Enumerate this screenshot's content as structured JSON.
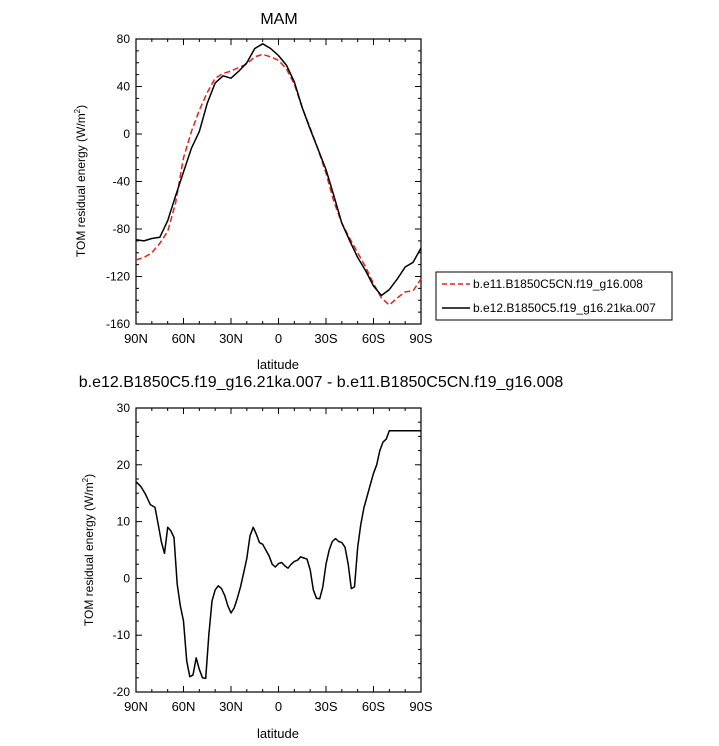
{
  "chart_data": [
    {
      "type": "line",
      "title": "MAM",
      "xlabel": "latitude",
      "ylabel": "TOM residual energy (W/m",
      "ylabel_sup": "2",
      "ylabel_close": ")",
      "xlim": [
        90,
        -90
      ],
      "ylim": [
        -160,
        80
      ],
      "yticks": [
        80,
        40,
        0,
        -40,
        -80,
        -120,
        -160
      ],
      "xticks": [
        90,
        60,
        30,
        0,
        -30,
        -60,
        -90
      ],
      "xtick_labels": [
        "90N",
        "60N",
        "30N",
        "0",
        "30S",
        "60S",
        "90S"
      ],
      "legend_position": "right",
      "x": [
        90,
        85,
        80,
        75,
        70,
        65,
        60,
        55,
        50,
        45,
        40,
        35,
        30,
        25,
        20,
        15,
        10,
        5,
        0,
        -5,
        -10,
        -15,
        -20,
        -25,
        -30,
        -35,
        -40,
        -45,
        -50,
        -55,
        -60,
        -65,
        -70,
        -75,
        -80,
        -85,
        -90
      ],
      "series": [
        {
          "name": "b.e11.B1850C5CN.f19_g16.008",
          "color": "#e8201a",
          "dash": "dashed",
          "values": [
            -106,
            -104,
            -100,
            -92,
            -82,
            -58,
            -20,
            2,
            20,
            35,
            47,
            51,
            53,
            56,
            59,
            65,
            67,
            65,
            62,
            55,
            42,
            22,
            5,
            -13,
            -33,
            -57,
            -75,
            -88,
            -100,
            -112,
            -126,
            -138,
            -144,
            -138,
            -133,
            -132,
            -122
          ]
        },
        {
          "name": "b.e12.B1850C5.f19_g16.21ka.007",
          "color": "#000000",
          "dash": "solid",
          "values": [
            -89,
            -90,
            -88,
            -87,
            -73,
            -52,
            -32,
            -12,
            2,
            26,
            43,
            49,
            47,
            53,
            60,
            72,
            76,
            72,
            66,
            58,
            44,
            22,
            4,
            -13,
            -30,
            -52,
            -75,
            -90,
            -104,
            -115,
            -128,
            -136,
            -131,
            -122,
            -112,
            -108,
            -96
          ]
        }
      ]
    },
    {
      "type": "line",
      "title": "b.e12.B1850C5.f19_g16.21ka.007 - b.e11.B1850C5CN.f19_g16.008",
      "xlabel": "latitude",
      "ylabel": "TOM residual energy (W/m",
      "ylabel_sup": "2",
      "ylabel_close": ")",
      "xlim": [
        90,
        -90
      ],
      "ylim": [
        -20,
        30
      ],
      "yticks": [
        30,
        20,
        10,
        0,
        -10,
        -20
      ],
      "xticks": [
        90,
        60,
        30,
        0,
        -30,
        -60,
        -90
      ],
      "xtick_labels": [
        "90N",
        "60N",
        "30N",
        "0",
        "30S",
        "60S",
        "90S"
      ],
      "series": [
        {
          "name": "",
          "color": "#000000",
          "dash": "solid",
          "x": [
            90,
            87,
            84,
            81,
            78,
            76,
            74,
            72,
            70,
            68,
            66,
            64,
            62,
            60,
            58,
            56,
            54,
            52,
            50,
            48,
            46,
            44,
            42,
            40,
            38,
            36,
            34,
            32,
            30,
            28,
            26,
            24,
            22,
            20,
            18,
            16,
            14,
            12,
            10,
            8,
            6,
            4,
            2,
            0,
            -2,
            -4,
            -6,
            -8,
            -10,
            -12,
            -14,
            -16,
            -18,
            -20,
            -22,
            -24,
            -26,
            -28,
            -30,
            -32,
            -34,
            -36,
            -38,
            -40,
            -42,
            -44,
            -46,
            -48,
            -50,
            -52,
            -54,
            -56,
            -58,
            -60,
            -62,
            -64,
            -66,
            -68,
            -70,
            -72,
            -74,
            -76,
            -78,
            -80,
            -82,
            -84,
            -86,
            -88,
            -90
          ],
          "values": [
            17,
            16.2,
            14.8,
            13,
            12.5,
            9.5,
            6.5,
            4.4,
            9,
            8.4,
            7.2,
            -1,
            -4.8,
            -7.5,
            -14.5,
            -17.3,
            -17,
            -14,
            -16,
            -17.5,
            -17.6,
            -10,
            -4,
            -2,
            -1.3,
            -1.8,
            -3,
            -4.8,
            -6.1,
            -5.2,
            -3.5,
            -1.5,
            1,
            3.5,
            7.5,
            9,
            7.8,
            6.3,
            6,
            5,
            4,
            2.5,
            2,
            2.6,
            2.8,
            2.2,
            1.8,
            2.5,
            3,
            3.2,
            3.8,
            3.6,
            3.4,
            1.5,
            -2,
            -3.5,
            -3.6,
            -1.5,
            2.5,
            5,
            6.5,
            7,
            6.5,
            6.3,
            5.5,
            2.5,
            -1.8,
            -1.5,
            5.5,
            9.5,
            12.5,
            14.5,
            16.5,
            18.5,
            20,
            22.5,
            24,
            24.5,
            26,
            26,
            26,
            26,
            26,
            26,
            26,
            26,
            26,
            26,
            26
          ]
        }
      ]
    }
  ]
}
